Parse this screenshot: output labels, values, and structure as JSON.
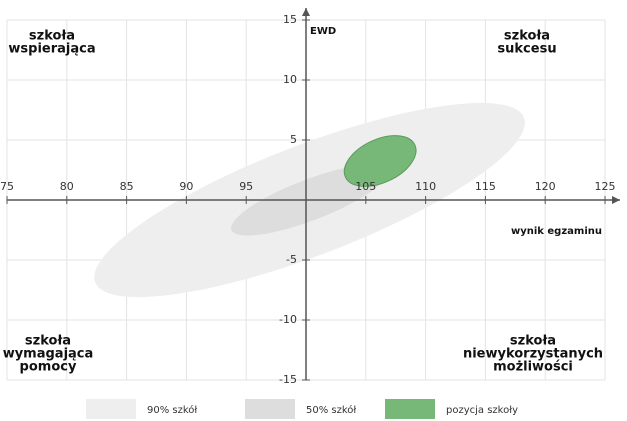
{
  "chart_data": {
    "type": "ellipse",
    "xlabel": "wynik egzaminu",
    "ylabel": "EWD",
    "xlim": [
      75,
      125
    ],
    "ylim": [
      -15,
      15
    ],
    "xticks": [
      75,
      80,
      85,
      90,
      95,
      105,
      110,
      115,
      120,
      125
    ],
    "yticks": [
      -15,
      -10,
      -5,
      5,
      10,
      15
    ],
    "grid": true,
    "x_axis_at": 0,
    "y_axis_at": 100,
    "corners": [
      {
        "position": "top-left",
        "lines": [
          "szkoła",
          "wspierająca"
        ]
      },
      {
        "position": "top-right",
        "lines": [
          "szkoła",
          "sukcesu"
        ]
      },
      {
        "position": "bottom-left",
        "lines": [
          "szkoła",
          "wymagająca",
          "pomocy"
        ]
      },
      {
        "position": "bottom-right",
        "lines": [
          "szkoła",
          "niewykorzystanych",
          "możliwości"
        ]
      }
    ],
    "series": [
      {
        "name": "90% szkół",
        "color": "#eeeeee",
        "x": 100.3,
        "y": 0,
        "rx": 19.2,
        "ry": 4.6,
        "angle": 21
      },
      {
        "name": "50% szkół",
        "color": "#dddddd",
        "x": 100.3,
        "y": 0,
        "rx": 7,
        "ry": 1.7,
        "angle": 21
      },
      {
        "name": "pozycja szkoły",
        "color": "#77b777",
        "x": 106.2,
        "y": 3.25,
        "rx": 3.2,
        "ry": 1.8,
        "angle": 25
      }
    ]
  }
}
